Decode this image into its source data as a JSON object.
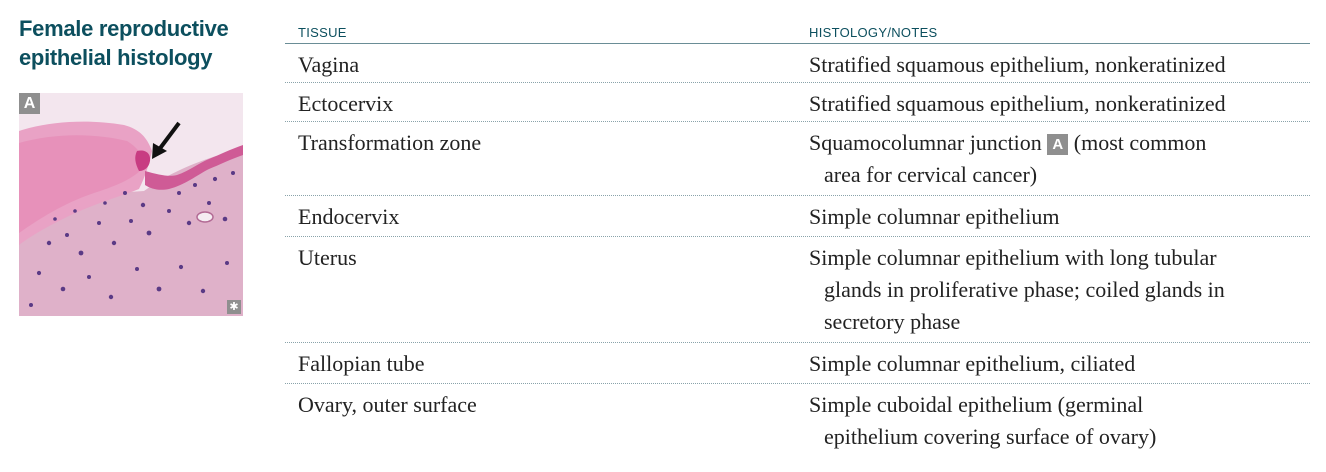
{
  "section_title": "Female reproductive epithelial histology",
  "figure": {
    "label": "A",
    "credit_symbol": "✱",
    "arrow_icon": "arrow-pointer-icon",
    "colors": {
      "background": "#f2e2ec",
      "stroma": "#dca6c3",
      "epithelium": "#d35f98",
      "nuclei": "#5a3a85"
    }
  },
  "table": {
    "headers": {
      "tissue": "TISSUE",
      "notes": "HISTOLOGY/NOTES"
    },
    "rows": [
      {
        "tissue": "Vagina",
        "notes": [
          "Stratified squamous epithelium, nonkeratinized"
        ]
      },
      {
        "tissue": "Ectocervix",
        "notes": [
          "Stratified squamous epithelium, nonkeratinized"
        ]
      },
      {
        "tissue": "Transformation zone",
        "notes_before_badge": "Squamocolumnar junction",
        "badge": "A",
        "notes_after_badge": "(most common",
        "notes": [
          "area for cervical cancer)"
        ]
      },
      {
        "tissue": "Endocervix",
        "notes": [
          "Simple columnar epithelium"
        ]
      },
      {
        "tissue": "Uterus",
        "notes": [
          "Simple columnar epithelium with long tubular",
          "glands in proliferative phase; coiled glands in",
          "secretory phase"
        ]
      },
      {
        "tissue": "Fallopian tube",
        "notes": [
          "Simple columnar epithelium, ciliated"
        ]
      },
      {
        "tissue": "Ovary, outer surface",
        "notes": [
          "Simple cuboidal epithelium (germinal",
          "epithelium covering surface of ovary)"
        ]
      }
    ]
  },
  "colors": {
    "title": "#0c4f5e",
    "header_rule": "#6a8d96",
    "row_rule": "#8aa3aa",
    "badge": "#8f8f8f"
  }
}
